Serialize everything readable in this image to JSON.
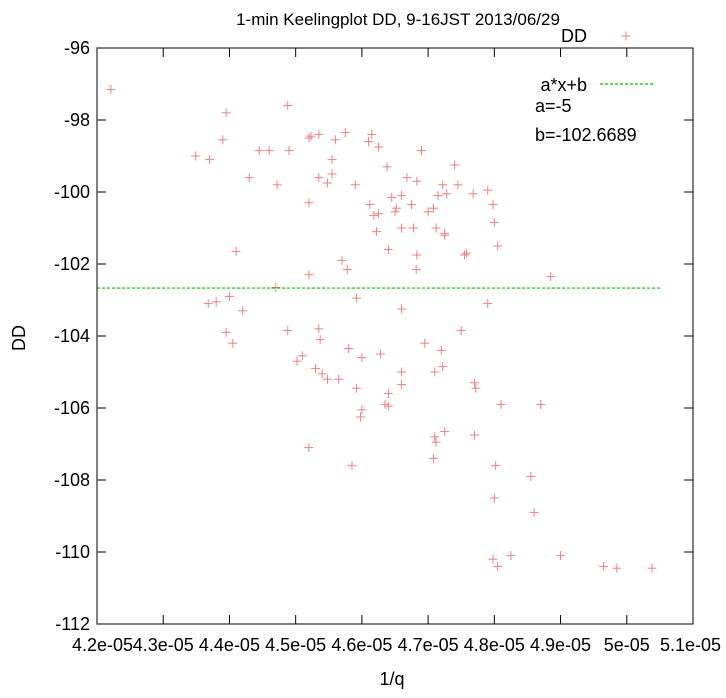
{
  "chart_data": {
    "type": "scatter",
    "title": "1-min Keelingplot DD, 9-16JST 2013/06/29",
    "xlabel": "1/q",
    "ylabel": "DD",
    "xlim": [
      4.2e-05,
      5.1e-05
    ],
    "ylim": [
      -112,
      -96
    ],
    "x_ticks": [
      {
        "value": 4.2e-05,
        "label": "4.2e-05"
      },
      {
        "value": 4.3e-05,
        "label": "4.3e-05"
      },
      {
        "value": 4.4e-05,
        "label": "4.4e-05"
      },
      {
        "value": 4.5e-05,
        "label": "4.5e-05"
      },
      {
        "value": 4.6e-05,
        "label": "4.6e-05"
      },
      {
        "value": 4.7e-05,
        "label": "4.7e-05"
      },
      {
        "value": 4.8e-05,
        "label": "4.8e-05"
      },
      {
        "value": 4.9e-05,
        "label": "4.9e-05"
      },
      {
        "value": 5e-05,
        "label": "5e-05"
      },
      {
        "value": 5.1e-05,
        "label": "5.1e-05"
      }
    ],
    "y_ticks": [
      {
        "value": -96,
        "label": "-96"
      },
      {
        "value": -98,
        "label": "-98"
      },
      {
        "value": -100,
        "label": "-100"
      },
      {
        "value": -102,
        "label": "-102"
      },
      {
        "value": -104,
        "label": "-104"
      },
      {
        "value": -106,
        "label": "-106"
      },
      {
        "value": -108,
        "label": "-108"
      },
      {
        "value": -110,
        "label": "-110"
      },
      {
        "value": -112,
        "label": "-112"
      }
    ],
    "grid": false,
    "legend": {
      "placement": "top-right",
      "entries": [
        {
          "label": "DD",
          "color": "#f08080",
          "marker": "plus"
        },
        {
          "label": "a*x+b",
          "color": "#00c000",
          "marker": "dashed-line"
        }
      ],
      "annotations": [
        "a=-5",
        "b=-102.6689"
      ]
    },
    "series": [
      {
        "name": "DD",
        "color": "#f08080",
        "points": [
          [
            4.221e-05,
            -97.15
          ],
          [
            4.349e-05,
            -99.0
          ],
          [
            4.37e-05,
            -99.1
          ],
          [
            4.39e-05,
            -98.55
          ],
          [
            4.395e-05,
            -97.8
          ],
          [
            4.43e-05,
            -99.6
          ],
          [
            4.445e-05,
            -98.85
          ],
          [
            4.46e-05,
            -98.85
          ],
          [
            4.472e-05,
            -99.8
          ],
          [
            4.488e-05,
            -97.6
          ],
          [
            4.49e-05,
            -98.85
          ],
          [
            4.52e-05,
            -98.5
          ],
          [
            4.523e-05,
            -98.45
          ],
          [
            4.535e-05,
            -98.4
          ],
          [
            4.548e-05,
            -99.75
          ],
          [
            4.555e-05,
            -99.1
          ],
          [
            4.555e-05,
            -99.5
          ],
          [
            4.56e-05,
            -98.55
          ],
          [
            4.575e-05,
            -98.35
          ],
          [
            4.59e-05,
            -99.8
          ],
          [
            4.61e-05,
            -98.6
          ],
          [
            4.615e-05,
            -98.4
          ],
          [
            4.625e-05,
            -98.75
          ],
          [
            4.52e-05,
            -100.3
          ],
          [
            4.535e-05,
            -99.6
          ],
          [
            4.612e-05,
            -100.35
          ],
          [
            4.625e-05,
            -100.6
          ],
          [
            4.638e-05,
            -99.3
          ],
          [
            4.645e-05,
            -100.15
          ],
          [
            4.652e-05,
            -100.45
          ],
          [
            4.66e-05,
            -100.1
          ],
          [
            4.668e-05,
            -99.6
          ],
          [
            4.675e-05,
            -100.35
          ],
          [
            4.683e-05,
            -99.7
          ],
          [
            4.69e-05,
            -98.85
          ],
          [
            4.7e-05,
            -100.55
          ],
          [
            4.708e-05,
            -100.45
          ],
          [
            4.715e-05,
            -100.1
          ],
          [
            4.722e-05,
            -99.8
          ],
          [
            4.728e-05,
            -100.05
          ],
          [
            4.74e-05,
            -99.25
          ],
          [
            4.745e-05,
            -99.8
          ],
          [
            4.768e-05,
            -100.05
          ],
          [
            4.79e-05,
            -99.95
          ],
          [
            4.798e-05,
            -100.35
          ],
          [
            4.8e-05,
            -100.85
          ],
          [
            4.618e-05,
            -100.65
          ],
          [
            4.622e-05,
            -101.1
          ],
          [
            4.65e-05,
            -100.55
          ],
          [
            4.66e-05,
            -101.0
          ],
          [
            4.678e-05,
            -101.0
          ],
          [
            4.725e-05,
            -101.15
          ],
          [
            4.712e-05,
            -101.0
          ],
          [
            4.725e-05,
            -101.2
          ],
          [
            4.57e-05,
            -101.9
          ],
          [
            4.578e-05,
            -102.15
          ],
          [
            4.683e-05,
            -101.75
          ],
          [
            4.682e-05,
            -102.15
          ],
          [
            4.755e-05,
            -101.75
          ],
          [
            4.758e-05,
            -101.7
          ],
          [
            4.805e-05,
            -101.5
          ],
          [
            4.64e-05,
            -101.6
          ],
          [
            4.41e-05,
            -101.65
          ],
          [
            4.47e-05,
            -102.65
          ],
          [
            4.52e-05,
            -102.3
          ],
          [
            4.4e-05,
            -102.9
          ],
          [
            4.368e-05,
            -103.1
          ],
          [
            4.38e-05,
            -103.05
          ],
          [
            4.42e-05,
            -103.3
          ],
          [
            4.592e-05,
            -102.95
          ],
          [
            4.66e-05,
            -103.25
          ],
          [
            4.79e-05,
            -103.1
          ],
          [
            4.885e-05,
            -102.35
          ],
          [
            4.395e-05,
            -103.9
          ],
          [
            4.405e-05,
            -104.2
          ],
          [
            4.488e-05,
            -103.85
          ],
          [
            4.535e-05,
            -103.8
          ],
          [
            4.537e-05,
            -104.1
          ],
          [
            4.75e-05,
            -103.85
          ],
          [
            4.502e-05,
            -104.7
          ],
          [
            4.51e-05,
            -104.55
          ],
          [
            4.53e-05,
            -104.9
          ],
          [
            4.54e-05,
            -105.05
          ],
          [
            4.548e-05,
            -105.2
          ],
          [
            4.565e-05,
            -105.2
          ],
          [
            4.58e-05,
            -104.35
          ],
          [
            4.592e-05,
            -105.45
          ],
          [
            4.6e-05,
            -104.6
          ],
          [
            4.628e-05,
            -104.5
          ],
          [
            4.64e-05,
            -105.6
          ],
          [
            4.66e-05,
            -105.0
          ],
          [
            4.66e-05,
            -105.35
          ],
          [
            4.695e-05,
            -104.2
          ],
          [
            4.71e-05,
            -105.0
          ],
          [
            4.72e-05,
            -104.4
          ],
          [
            4.722e-05,
            -104.85
          ],
          [
            4.77e-05,
            -105.3
          ],
          [
            4.772e-05,
            -105.45
          ],
          [
            4.6e-05,
            -106.05
          ],
          [
            4.598e-05,
            -106.25
          ],
          [
            4.635e-05,
            -105.9
          ],
          [
            4.64e-05,
            -105.95
          ],
          [
            4.71e-05,
            -106.8
          ],
          [
            4.712e-05,
            -106.95
          ],
          [
            4.725e-05,
            -106.65
          ],
          [
            4.77e-05,
            -106.75
          ],
          [
            4.81e-05,
            -105.9
          ],
          [
            4.87e-05,
            -105.9
          ],
          [
            4.52e-05,
            -107.1
          ],
          [
            4.585e-05,
            -107.6
          ],
          [
            4.708e-05,
            -107.4
          ],
          [
            4.802e-05,
            -107.6
          ],
          [
            4.855e-05,
            -107.9
          ],
          [
            4.8e-05,
            -108.5
          ],
          [
            4.86e-05,
            -108.9
          ],
          [
            4.798e-05,
            -110.2
          ],
          [
            4.805e-05,
            -110.4
          ],
          [
            4.825e-05,
            -110.1
          ],
          [
            4.9e-05,
            -110.1
          ],
          [
            4.965e-05,
            -110.4
          ],
          [
            4.985e-05,
            -110.45
          ],
          [
            5.038e-05,
            -110.45
          ]
        ]
      },
      {
        "name": "a*x+b",
        "color": "#00c000",
        "type": "line",
        "dash": "dashed",
        "points": [
          [
            4.2e-05,
            -102.6689
          ],
          [
            5.05e-05,
            -102.6689
          ]
        ]
      }
    ]
  }
}
